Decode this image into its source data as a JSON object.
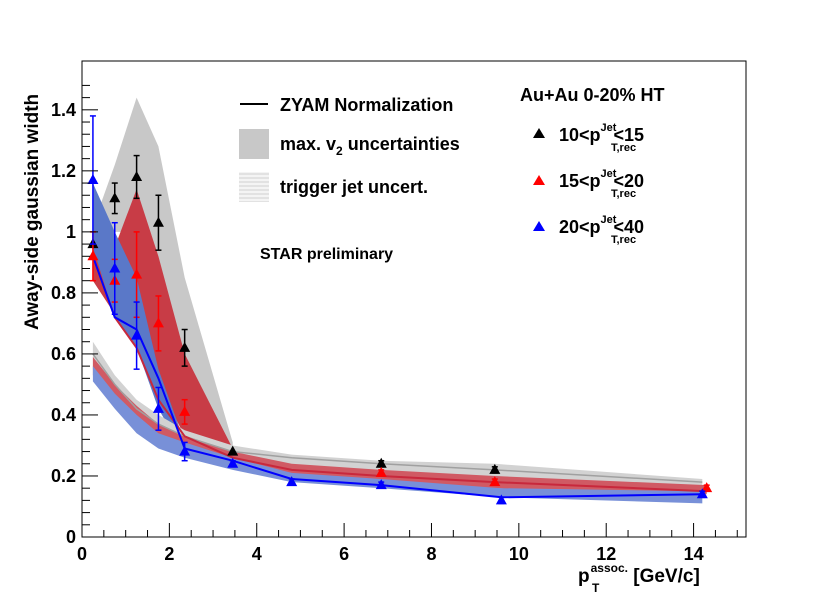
{
  "chart_data": {
    "type": "scatter",
    "xlabel": "p",
    "xlabel_sup": "assoc.",
    "xlabel_sub": "T",
    "xlabel_unit": " [GeV/c]",
    "ylabel": "Away-side gaussian width",
    "xlim": [
      0,
      15.2
    ],
    "ylim": [
      0,
      1.56
    ],
    "x_ticks": [
      0,
      2,
      4,
      6,
      8,
      10,
      12,
      14
    ],
    "y_ticks": [
      0,
      0.2,
      0.4,
      0.6,
      0.8,
      1,
      1.2,
      1.4
    ],
    "x_tick_labels": [
      "0",
      "2",
      "4",
      "6",
      "8",
      "10",
      "12",
      "14"
    ],
    "y_tick_labels": [
      "0",
      "0.2",
      "0.4",
      "0.6",
      "0.8",
      "1",
      "1.2",
      "1.4"
    ],
    "grid": false,
    "legend_left": [
      {
        "kind": "line",
        "text": "ZYAM Normalization"
      },
      {
        "kind": "fill",
        "text": "max. v",
        "sub": "2",
        "suffix": " uncertainties"
      },
      {
        "kind": "hatch",
        "text": "trigger jet uncert."
      }
    ],
    "legend_right_title": "Au+Au 0-20% HT",
    "legend_right": [
      {
        "pre": "10<p",
        "sup": "Jet",
        "sub": "T,rec",
        "post": "<15",
        "color": "#000000"
      },
      {
        "pre": "15<p",
        "sup": "Jet",
        "sub": "T,rec",
        "post": "<20",
        "color": "#ff0000"
      },
      {
        "pre": "20<p",
        "sup": "Jet",
        "sub": "T,rec",
        "post": "<40",
        "color": "#0000ff"
      }
    ],
    "annotation": "STAR preliminary",
    "bands": [
      {
        "name": "v2-band-black",
        "color": "#c8c8c8",
        "x": [
          0.25,
          0.75,
          1.25,
          1.75,
          2.35,
          3.45
        ],
        "lower": [
          0.93,
          1.0,
          1.0,
          0.75,
          0.42,
          0.27
        ],
        "upper": [
          1.02,
          1.22,
          1.44,
          1.28,
          0.85,
          0.31
        ]
      },
      {
        "name": "v2-band-red",
        "color": "#c83c46",
        "x": [
          0.25,
          0.75,
          1.25,
          1.75,
          2.35,
          3.45
        ],
        "lower": [
          0.84,
          0.73,
          0.66,
          0.5,
          0.33,
          0.26
        ],
        "upper": [
          0.94,
          0.95,
          1.14,
          0.92,
          0.6,
          0.29
        ]
      },
      {
        "name": "v2-band-blue",
        "color": "#5a78c8",
        "x": [
          0.25,
          0.75,
          1.25,
          1.75,
          2.35
        ],
        "lower": [
          0.95,
          0.72,
          0.62,
          0.42,
          0.27
        ],
        "upper": [
          1.16,
          1.0,
          0.85,
          0.55,
          0.31
        ]
      },
      {
        "name": "jet-band-black",
        "color": "#d2d2d2",
        "x": [
          0.25,
          0.75,
          1.25,
          1.75,
          2.35,
          3.45,
          4.8,
          6.85,
          9.45,
          14.2
        ],
        "lower": [
          0.55,
          0.46,
          0.38,
          0.33,
          0.3,
          0.25,
          0.22,
          0.2,
          0.18,
          0.15
        ],
        "upper": [
          0.64,
          0.53,
          0.45,
          0.4,
          0.35,
          0.3,
          0.27,
          0.25,
          0.24,
          0.19
        ]
      },
      {
        "name": "jet-band-red",
        "color": "#d05a64",
        "x": [
          0.25,
          0.75,
          1.25,
          1.75,
          2.35,
          3.45,
          4.8,
          6.85,
          9.45,
          14.3
        ],
        "lower": [
          0.53,
          0.45,
          0.37,
          0.32,
          0.29,
          0.24,
          0.2,
          0.18,
          0.16,
          0.14
        ],
        "upper": [
          0.59,
          0.5,
          0.43,
          0.37,
          0.33,
          0.28,
          0.24,
          0.22,
          0.2,
          0.17
        ]
      },
      {
        "name": "jet-band-blue",
        "color": "#7890d8",
        "x": [
          0.25,
          0.75,
          1.25,
          1.75,
          2.35,
          3.45,
          4.8,
          6.85,
          9.6,
          14.2
        ],
        "lower": [
          0.51,
          0.42,
          0.34,
          0.29,
          0.26,
          0.22,
          0.18,
          0.16,
          0.13,
          0.11
        ],
        "upper": [
          0.56,
          0.47,
          0.4,
          0.34,
          0.31,
          0.26,
          0.21,
          0.19,
          0.16,
          0.15
        ]
      }
    ],
    "lines": [
      {
        "name": "zyam-black",
        "color": "#a0a0a0",
        "width": 1.5,
        "x": [
          0.25,
          0.75,
          1.25,
          1.75,
          2.35,
          3.45,
          4.8,
          6.85,
          9.45,
          14.2
        ],
        "y": [
          0.6,
          0.5,
          0.42,
          0.37,
          0.33,
          0.28,
          0.26,
          0.24,
          0.22,
          0.18
        ]
      },
      {
        "name": "zyam-red",
        "color": "#c8283c",
        "width": 2,
        "x": [
          0.25,
          0.75,
          1.25,
          1.75,
          2.35,
          3.45,
          4.8,
          6.85,
          9.45,
          14.3
        ],
        "y": [
          0.92,
          0.72,
          0.62,
          0.45,
          0.33,
          0.26,
          0.22,
          0.2,
          0.18,
          0.15
        ]
      },
      {
        "name": "zyam-blue",
        "color": "#0000ff",
        "width": 2,
        "x": [
          0.25,
          0.75,
          1.25,
          1.75,
          2.35,
          3.45,
          4.8,
          6.85,
          9.6,
          14.2
        ],
        "y": [
          0.92,
          0.72,
          0.68,
          0.52,
          0.29,
          0.25,
          0.19,
          0.17,
          0.13,
          0.14
        ]
      }
    ],
    "series": [
      {
        "name": "10<p_T,rec^Jet<15",
        "color": "#000000",
        "x": [
          0.25,
          0.75,
          1.25,
          1.75,
          2.35,
          3.45,
          6.85,
          9.45
        ],
        "y": [
          0.96,
          1.11,
          1.18,
          1.03,
          0.62,
          0.28,
          0.24,
          0.22
        ],
        "err": [
          0.0,
          0.05,
          0.07,
          0.09,
          0.06,
          0.0,
          0.01,
          0.01
        ]
      },
      {
        "name": "15<p_T,rec^Jet<20",
        "color": "#ff0000",
        "x": [
          0.25,
          0.75,
          1.25,
          1.75,
          2.35,
          6.85,
          9.45,
          14.3
        ],
        "y": [
          0.92,
          0.84,
          0.86,
          0.7,
          0.41,
          0.21,
          0.18,
          0.16
        ],
        "err": [
          0.08,
          0.07,
          0.14,
          0.09,
          0.04,
          0.01,
          0.01,
          0.01
        ]
      },
      {
        "name": "20<p_T,rec^Jet<40",
        "color": "#0000ff",
        "x": [
          0.25,
          0.75,
          1.25,
          1.75,
          2.35,
          3.45,
          4.8,
          6.85,
          9.6,
          14.2
        ],
        "y": [
          1.17,
          0.88,
          0.66,
          0.42,
          0.28,
          0.24,
          0.18,
          0.17,
          0.12,
          0.14
        ],
        "err": [
          0.21,
          0.15,
          0.11,
          0.07,
          0.03,
          0.01,
          0.01,
          0.01,
          0.01,
          0.01
        ]
      }
    ]
  }
}
